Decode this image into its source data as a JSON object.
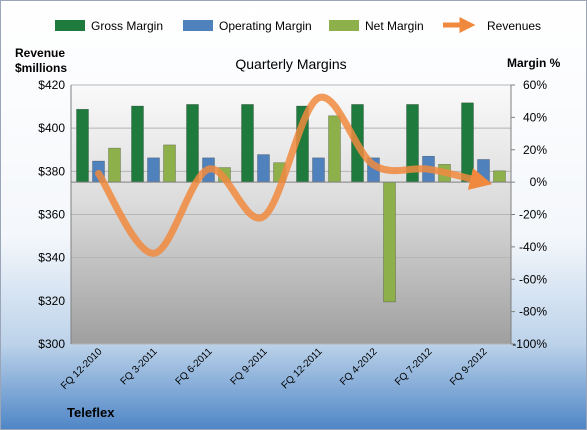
{
  "chart_data": {
    "type": "bar",
    "title": "Quarterly Margins",
    "company": "Teleflex",
    "ylabel_left_line1": "Revenue",
    "ylabel_left_line2": "$millions",
    "ylabel_right": "Margin %",
    "categories": [
      "FQ 12-2010",
      "FQ 3-2011",
      "FQ 6-2011",
      "FQ 9-2011",
      "FQ 12-2011",
      "FQ 4-2012",
      "FQ 7-2012",
      "FQ 9-2012"
    ],
    "ylim_left": [
      300,
      420
    ],
    "yticks_left": [
      "$300",
      "$320",
      "$340",
      "$360",
      "$380",
      "$400",
      "$420"
    ],
    "ylim_right": [
      -100,
      60
    ],
    "yticks_right": [
      "-100%",
      "-80%",
      "-60%",
      "-40%",
      "-20%",
      "0%",
      "20%",
      "40%",
      "60%"
    ],
    "legend_position": "top",
    "series": [
      {
        "name": "Gross Margin",
        "type": "bar",
        "axis": "right",
        "color": "#1f7a3d",
        "values": [
          45,
          47,
          48,
          48,
          47,
          48,
          48,
          49
        ]
      },
      {
        "name": "Operating Margin",
        "type": "bar",
        "axis": "right",
        "color": "#4f81bd",
        "values": [
          13,
          15,
          15,
          17,
          15,
          15,
          16,
          14
        ]
      },
      {
        "name": "Net Margin",
        "type": "bar",
        "axis": "right",
        "color": "#8db04a",
        "values": [
          21,
          23,
          9,
          12,
          41,
          -74,
          11,
          7
        ]
      },
      {
        "name": "Revenues",
        "type": "line",
        "axis": "left",
        "color": "#f0893e",
        "values": [
          379,
          342,
          381,
          359,
          414,
          383,
          381,
          375
        ]
      }
    ]
  }
}
